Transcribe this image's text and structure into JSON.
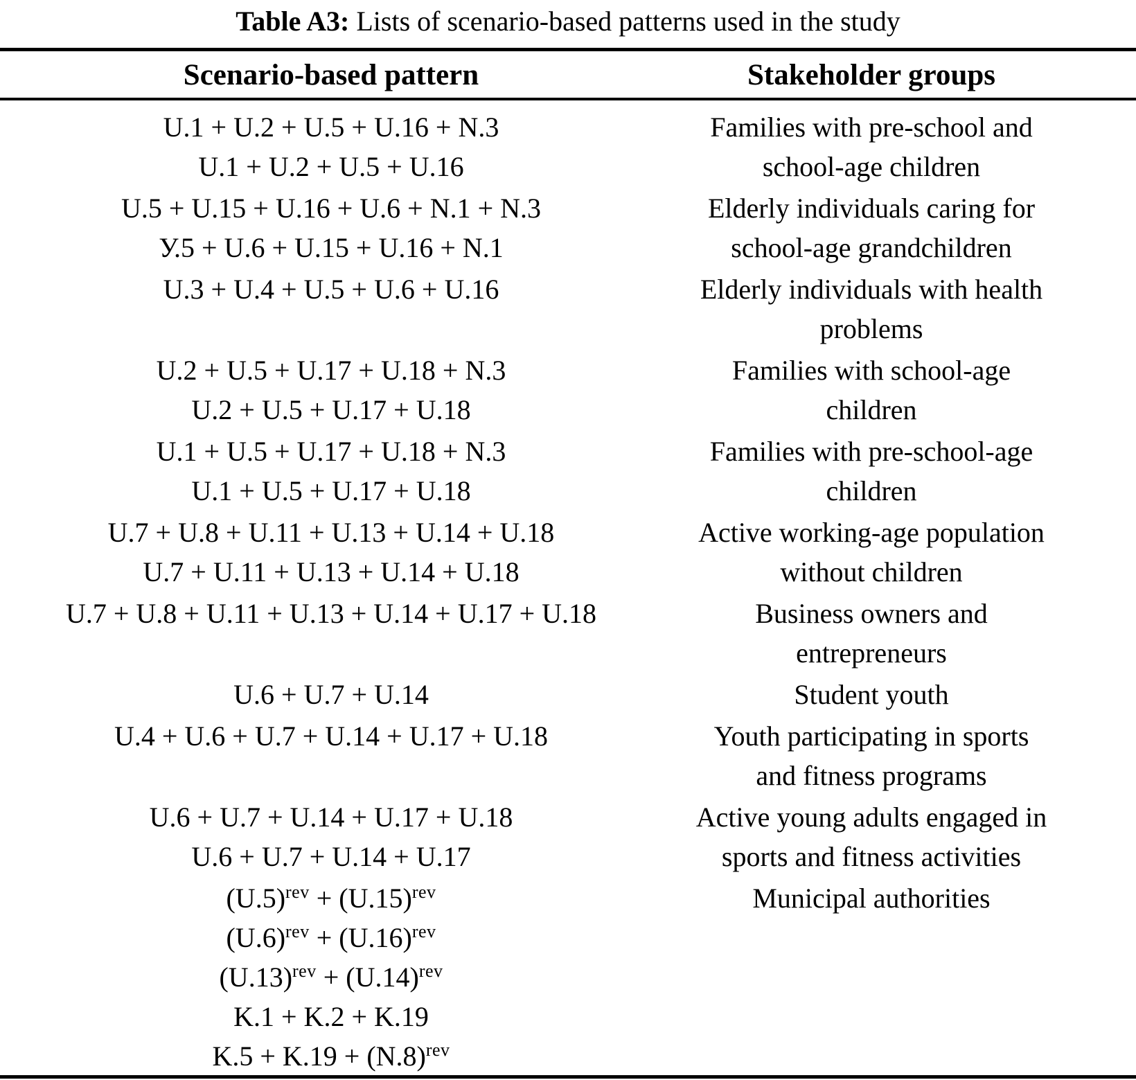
{
  "colors": {
    "background": "#ffffff",
    "text": "#000000",
    "rule": "#000000"
  },
  "title": {
    "prefix": "Table A3:",
    "text": " Lists of scenario-based patterns used in the study"
  },
  "table": {
    "headers": {
      "pattern": "Scenario-based pattern",
      "stakeholder": "Stakeholder groups"
    },
    "rows": [
      {
        "patterns": [
          "U.1 + U.2 + U.5 + U.16 + N.3",
          "U.1 + U.2 + U.5 + U.16"
        ],
        "stakeholder_lines": [
          "Families with pre-school and",
          "school-age children"
        ]
      },
      {
        "patterns": [
          "U.5 + U.15 + U.16 + U.6 + N.1 + N.3",
          "У.5 + U.6 + U.15 + U.16 + N.1"
        ],
        "stakeholder_lines": [
          "Elderly individuals caring for",
          "school-age grandchildren"
        ]
      },
      {
        "patterns": [
          "U.3 + U.4 + U.5 + U.6 + U.16"
        ],
        "stakeholder_lines": [
          "Elderly individuals with health",
          "problems"
        ]
      },
      {
        "patterns": [
          "U.2 + U.5 + U.17 + U.18 + N.3",
          "U.2 + U.5 + U.17 + U.18"
        ],
        "stakeholder_lines": [
          "Families with school-age",
          "children"
        ]
      },
      {
        "patterns": [
          "U.1 + U.5 + U.17 + U.18 + N.3",
          "U.1 + U.5 + U.17 + U.18"
        ],
        "stakeholder_lines": [
          "Families with pre-school-age",
          "children"
        ]
      },
      {
        "patterns": [
          "U.7 + U.8 + U.11 + U.13 + U.14 + U.18",
          "U.7 + U.11 + U.13 + U.14 + U.18"
        ],
        "stakeholder_lines": [
          "Active working-age population",
          "without children"
        ]
      },
      {
        "patterns": [
          "U.7 + U.8 + U.11 + U.13 + U.14 + U.17 + U.18"
        ],
        "stakeholder_lines": [
          "Business owners and",
          "entrepreneurs"
        ]
      },
      {
        "patterns": [
          "U.6 + U.7 + U.14"
        ],
        "stakeholder_lines": [
          "Student youth"
        ]
      },
      {
        "patterns": [
          "U.4 + U.6 + U.7 + U.14 + U.17 + U.18"
        ],
        "stakeholder_lines": [
          "Youth participating in sports",
          "and fitness programs"
        ]
      },
      {
        "patterns": [
          "U.6 + U.7 + U.14 + U.17 + U.18",
          "U.6 + U.7 + U.14 + U.17"
        ],
        "stakeholder_lines": [
          "Active young adults engaged in",
          "sports and fitness activities"
        ]
      },
      {
        "patterns": [
          "(U.5)^rev + (U.15)^rev",
          "(U.6)^rev + (U.16)^rev",
          "(U.13)^rev + (U.14)^rev",
          "K.1 + K.2 + K.19",
          "K.5 + K.19 + (N.8)^rev"
        ],
        "stakeholder_lines": [
          "Municipal authorities"
        ]
      }
    ]
  }
}
